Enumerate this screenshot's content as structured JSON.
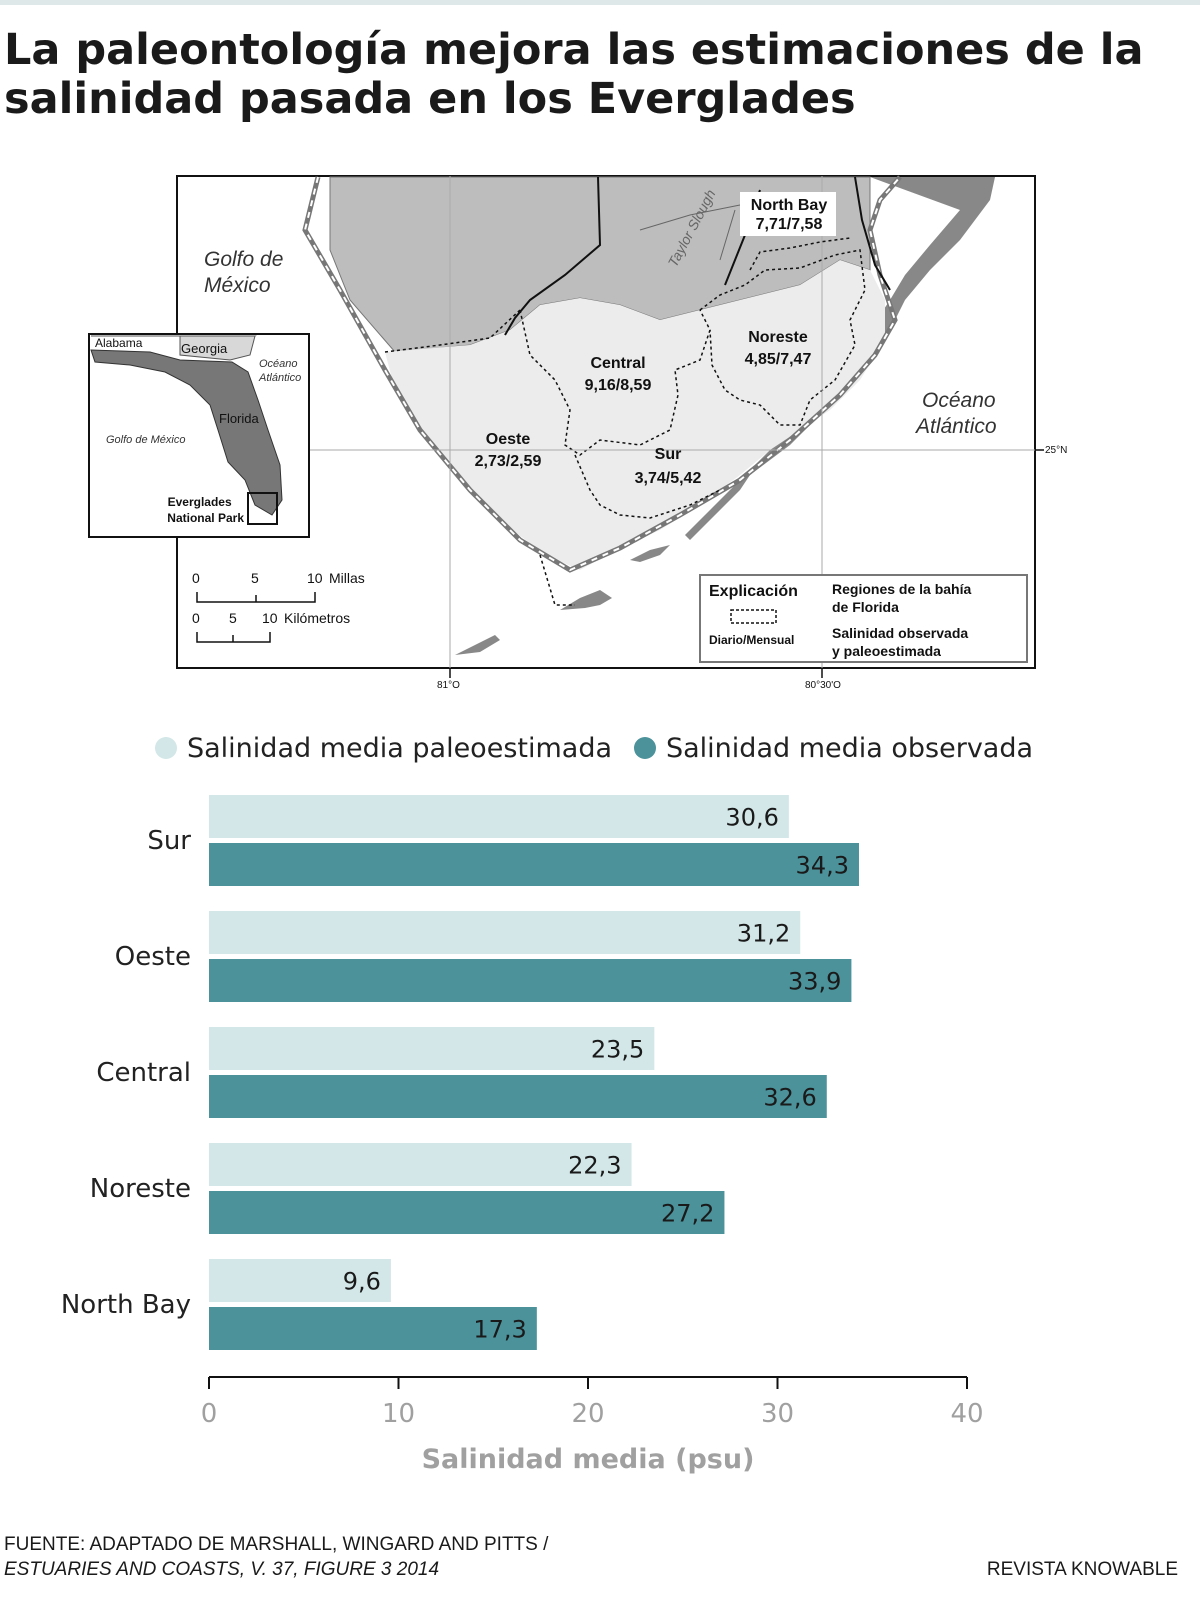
{
  "title": "La paleontología mejora las estimaciones de la salinidad pasada en los Everglades",
  "map": {
    "labels": {
      "gulf": [
        "Golfo de",
        "México"
      ],
      "ocean": [
        "Océano",
        "Atlántico"
      ],
      "taylor": "Taylor Slough",
      "lat": "25°N",
      "lon1": "81°O",
      "lon2": "80°30'O"
    },
    "regions": [
      {
        "name": "North Bay",
        "values": "7,71/7,58"
      },
      {
        "name": "Noreste",
        "values": "4,85/7,47"
      },
      {
        "name": "Central",
        "values": "9,16/8,59"
      },
      {
        "name": "Oeste",
        "values": "2,73/2,59"
      },
      {
        "name": "Sur",
        "values": "3,74/5,42"
      }
    ],
    "inset": {
      "alabama": "Alabama",
      "georgia": "Georgia",
      "ocean": [
        "Océano",
        "Atlántico"
      ],
      "florida": "Florida",
      "gulf": "Golfo de México",
      "park": [
        "Everglades",
        "National Park"
      ]
    },
    "scale": {
      "miles_ticks": [
        "0",
        "5",
        "10"
      ],
      "miles_unit": "Millas",
      "km_ticks": [
        "0",
        "5",
        "10"
      ],
      "km_unit": "Kilómetros"
    },
    "explanation": {
      "title": "Explicación",
      "sample": "Diario/Mensual",
      "line1": [
        "Regiones de la bahía",
        "de Florida"
      ],
      "line2": [
        "Salinidad observada",
        "y paleoestimada"
      ]
    }
  },
  "legend": [
    {
      "label": "Salinidad media paleoestimada",
      "color": "#d3e7e8"
    },
    {
      "label": "Salinidad media observada",
      "color": "#4b929b"
    }
  ],
  "chart_data": {
    "type": "bar",
    "orientation": "horizontal",
    "categories": [
      "Sur",
      "Oeste",
      "Central",
      "Noreste",
      "North Bay"
    ],
    "series": [
      {
        "name": "Salinidad media paleoestimada",
        "color": "#d3e7e8",
        "values": [
          30.6,
          31.2,
          23.5,
          22.3,
          9.6
        ],
        "labels": [
          "30,6",
          "31,2",
          "23,5",
          "22,3",
          "9,6"
        ]
      },
      {
        "name": "Salinidad media observada",
        "color": "#4b929b",
        "values": [
          34.3,
          33.9,
          32.6,
          27.2,
          17.3
        ],
        "labels": [
          "34,3",
          "33,9",
          "32,6",
          "27,2",
          "17,3"
        ]
      }
    ],
    "xlim": [
      0,
      40
    ],
    "xticks": [
      0,
      10,
      20,
      30,
      40
    ],
    "xtick_labels": [
      "0",
      "10",
      "20",
      "30",
      "40"
    ],
    "xlabel": "Salinidad media (psu)",
    "grid": false
  },
  "source": {
    "line1": "FUENTE: ADAPTADO DE MARSHALL, WINGARD AND PITTS /",
    "line2": "ESTUARIES AND COASTS, V. 37, FIGURE 3 2014"
  },
  "credit": "REVISTA KNOWABLE"
}
